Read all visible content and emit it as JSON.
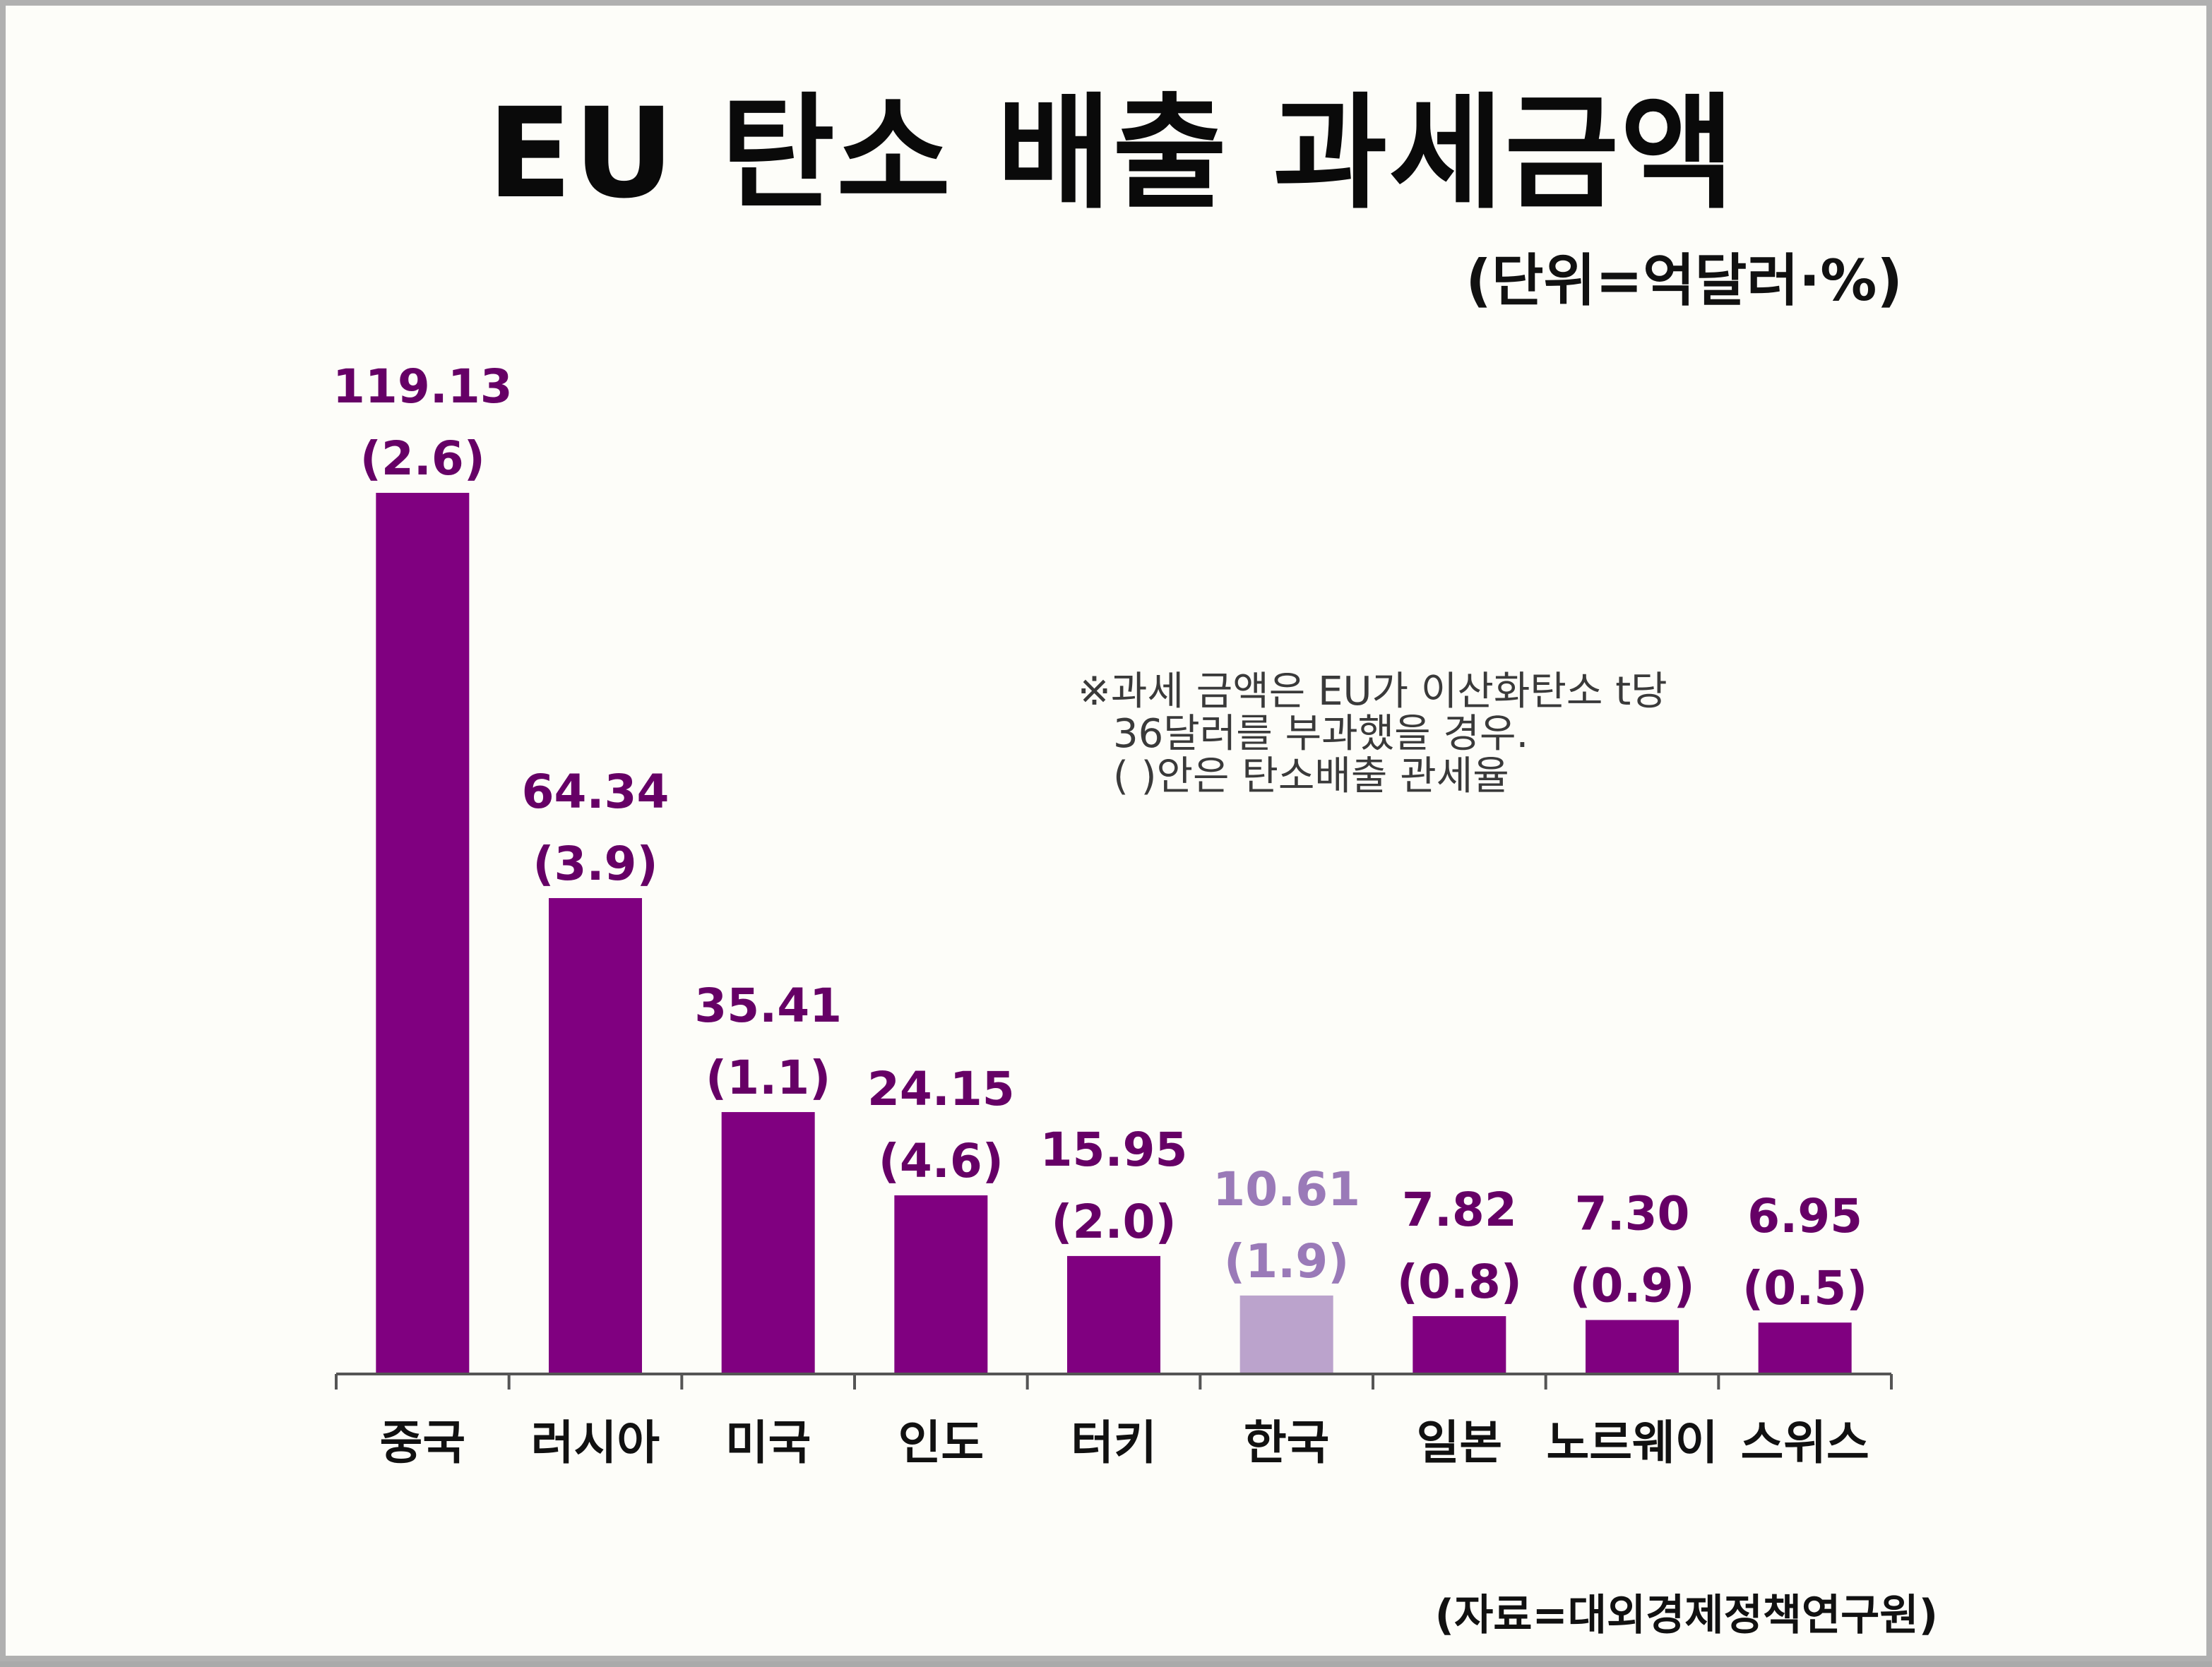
{
  "title": "EU 탄소 배출 과세금액",
  "unit": "(단위=억달러·%)",
  "note": {
    "line1": "※과세 금액은 EU가 이산화탄소 t당",
    "line2": "36달러를 부과했을 경우.",
    "line3": "( )안은 탄소배출 관세율"
  },
  "source": "(자료=대외경제정책연구원)",
  "colors": {
    "bar": "#800080",
    "highlight_bar": "#bba3cc",
    "label": "#660066",
    "highlight_label": "#9a7ab8"
  },
  "chart_data": {
    "type": "bar",
    "title": "EU 탄소 배출 과세금액",
    "unit": "억달러·%",
    "categories": [
      "중국",
      "러시아",
      "미국",
      "인도",
      "터키",
      "한국",
      "일본",
      "노르웨이",
      "스위스"
    ],
    "values": [
      119.13,
      64.34,
      35.41,
      24.15,
      15.95,
      10.61,
      7.82,
      7.3,
      6.95
    ],
    "value_labels": [
      "119.13",
      "64.34",
      "35.41",
      "24.15",
      "15.95",
      "10.61",
      "7.82",
      "7.30",
      "6.95"
    ],
    "rate_labels": [
      "(2.6)",
      "(3.9)",
      "(1.1)",
      "(4.6)",
      "(2.0)",
      "(1.9)",
      "(0.8)",
      "(0.9)",
      "(0.5)"
    ],
    "highlight_index": 5,
    "ylim": [
      0,
      119.13
    ],
    "xlabel": "",
    "ylabel": ""
  }
}
